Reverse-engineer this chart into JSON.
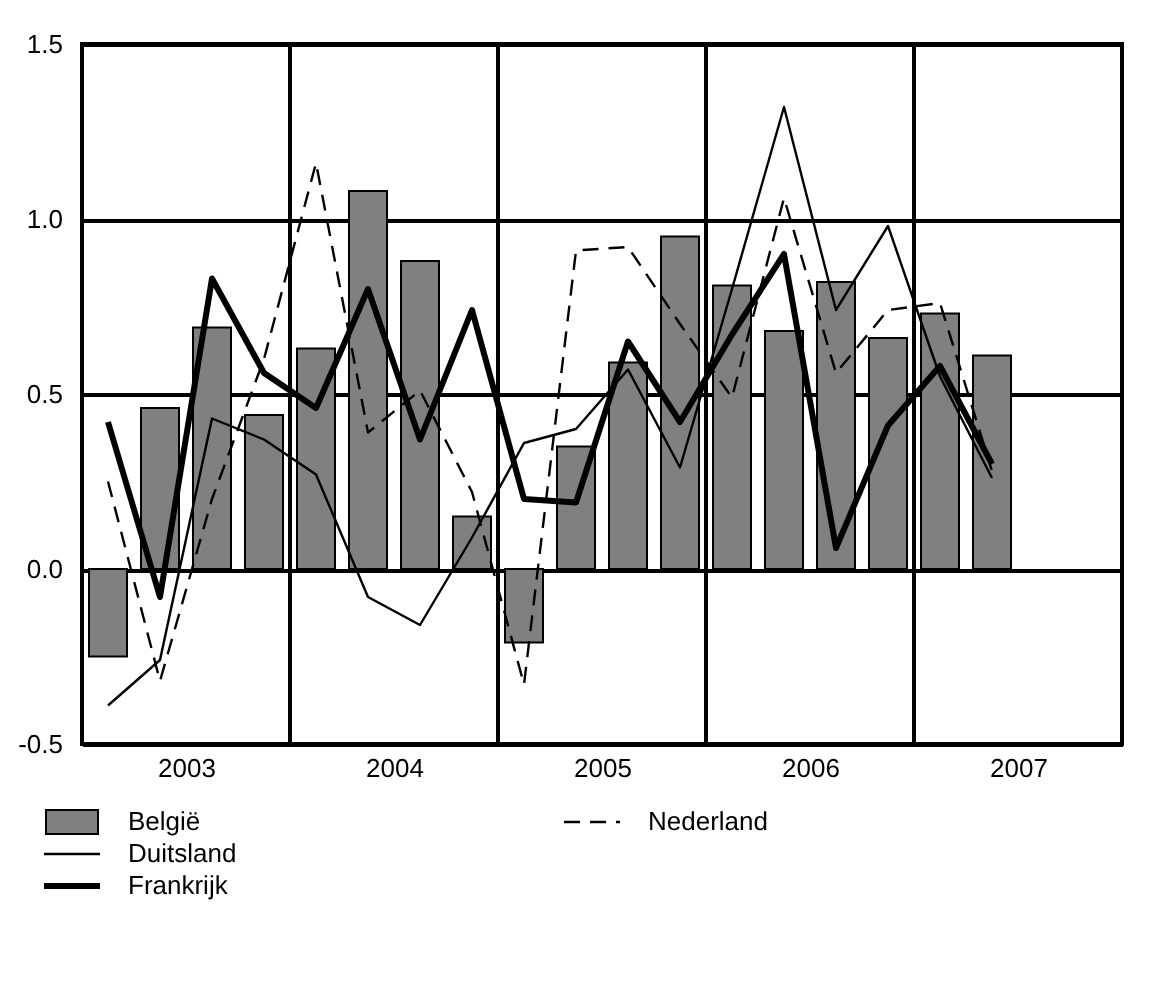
{
  "chart_data": {
    "type": "bar",
    "x": [
      2002.625,
      2002.875,
      2003.125,
      2003.375,
      2003.625,
      2003.875,
      2004.125,
      2004.375,
      2004.625,
      2004.875,
      2005.125,
      2005.375,
      2005.625,
      2005.875,
      2006.125,
      2006.375,
      2006.625,
      2006.875
    ],
    "series": [
      {
        "name": "België",
        "type": "bar",
        "color": "#808080",
        "values": [
          -0.25,
          0.46,
          0.69,
          0.44,
          0.63,
          1.08,
          0.88,
          0.15,
          -0.21,
          0.35,
          0.59,
          0.95,
          0.81,
          0.68,
          0.82,
          0.66,
          0.73,
          0.61
        ]
      },
      {
        "name": "Duitsland",
        "type": "line",
        "line_style": "solid",
        "color": "#000000",
        "values": [
          -0.39,
          -0.26,
          0.43,
          0.37,
          0.27,
          -0.08,
          -0.16,
          0.09,
          0.36,
          0.4,
          0.57,
          0.29,
          0.8,
          1.32,
          0.74,
          0.98,
          0.55,
          0.26
        ]
      },
      {
        "name": "Frankrijk",
        "type": "line",
        "line_style": "solid",
        "color": "#000000",
        "values": [
          0.42,
          -0.08,
          0.83,
          0.56,
          0.46,
          0.8,
          0.37,
          0.74,
          0.2,
          0.19,
          0.65,
          0.42,
          0.67,
          0.9,
          0.06,
          0.41,
          0.58,
          0.3
        ]
      },
      {
        "name": "Nederland",
        "type": "line",
        "line_style": "dashed",
        "color": "#000000",
        "values": [
          0.25,
          -0.32,
          0.2,
          0.6,
          1.16,
          0.39,
          0.51,
          0.22,
          -0.33,
          0.91,
          0.92,
          0.7,
          0.49,
          1.06,
          0.56,
          0.74,
          0.76,
          0.28
        ]
      }
    ],
    "xlim": [
      2002.5,
      2007.5
    ],
    "xticks": [
      2003,
      2004,
      2005,
      2006,
      2007
    ],
    "ylim": [
      -0.5,
      1.5
    ],
    "yticks": [
      {
        "value": -0.5,
        "label": "-0.5"
      },
      {
        "value": 0,
        "label": "0.0"
      },
      {
        "value": 0.5,
        "label": "0.5"
      },
      {
        "value": 1,
        "label": "1.0"
      },
      {
        "value": 1.5,
        "label": "1.5"
      }
    ],
    "ref_lines": [
      {
        "axis": "x",
        "value": 2003.5
      },
      {
        "axis": "x",
        "value": 2004.5
      },
      {
        "axis": "x",
        "value": 2005.5
      },
      {
        "axis": "x",
        "value": 2006.5
      }
    ],
    "grid": "y",
    "legend": "bottom"
  }
}
